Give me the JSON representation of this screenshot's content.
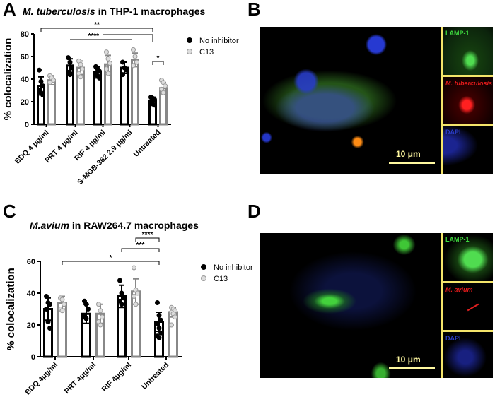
{
  "panels": {
    "A": "A",
    "B": "B",
    "C": "C",
    "D": "D"
  },
  "chart_data": [
    {
      "type": "bar",
      "title_italic": "M. tuberculosis",
      "title_rest": " in THP-1 macrophages",
      "ylabel": "% colocalization",
      "ylim": [
        0,
        80
      ],
      "yticks": [
        "0",
        "20",
        "40",
        "60",
        "80"
      ],
      "categories": [
        "BDQ 4 μg/ml",
        "PRT 4 μg/ml",
        "RIF 4 μg/ml",
        "S-MGB-362 2.9 μg/ml",
        "Untreated"
      ],
      "legend_position": "right",
      "series": [
        {
          "name": "No inhibitor",
          "color": "#000000",
          "values": [
            34,
            52,
            46,
            50,
            21
          ],
          "sd": [
            8,
            6,
            5,
            5,
            3
          ],
          "points": [
            [
              48,
              38,
              34,
              30,
              28,
              26
            ],
            [
              59,
              55,
              50,
              46,
              44
            ],
            [
              51,
              49,
              47,
              45,
              43,
              41
            ],
            [
              55,
              50,
              48,
              44
            ],
            [
              24,
              23,
              22,
              20,
              18,
              17
            ]
          ]
        },
        {
          "name": "C13",
          "color": "#888888",
          "values": [
            39,
            50,
            53,
            57,
            32
          ],
          "sd": [
            4,
            6,
            8,
            6,
            5
          ],
          "points": [
            [
              43,
              41,
              39,
              37
            ],
            [
              56,
              53,
              49,
              45,
              42
            ],
            [
              64,
              58,
              54,
              49,
              45
            ],
            [
              66,
              60,
              55,
              52
            ],
            [
              39,
              37,
              34,
              31,
              28
            ]
          ]
        }
      ],
      "significance": [
        {
          "label": "**",
          "from": [
            0,
            0
          ],
          "to": [
            4,
            0
          ]
        },
        {
          "label": "****",
          "from": [
            1,
            0
          ],
          "to": [
            3,
            0
          ],
          "to2": [
            4,
            0
          ]
        },
        {
          "label": "*",
          "from": [
            4,
            0
          ],
          "to": [
            4,
            1
          ]
        }
      ]
    },
    {
      "type": "bar",
      "title_italic": "M.avium",
      "title_rest": " in RAW264.7 macrophages",
      "ylabel": "% colocalization",
      "ylim": [
        0,
        60
      ],
      "yticks": [
        "0",
        "20",
        "40",
        "60"
      ],
      "categories": [
        "BDQ 4μg/ml",
        "PRT 4μg/ml",
        "RIF 4μg/ml",
        "Untreated"
      ],
      "legend_position": "right",
      "series": [
        {
          "name": "No inhibitor",
          "color": "#000000",
          "values": [
            30,
            27,
            38,
            22
          ],
          "sd": [
            7,
            6,
            7,
            6
          ],
          "points": [
            [
              38,
              34,
              33,
              30,
              22,
              18
            ],
            [
              35,
              33,
              30,
              25,
              24
            ],
            [
              48,
              40,
              37,
              35,
              33
            ],
            [
              34,
              26,
              23,
              21,
              18,
              15,
              13,
              12
            ]
          ]
        },
        {
          "name": "C13",
          "color": "#888888",
          "values": [
            34,
            27,
            41,
            28
          ],
          "sd": [
            4,
            6,
            8,
            3
          ],
          "points": [
            [
              37,
              36,
              33,
              30,
              29
            ],
            [
              33,
              29,
              25,
              22,
              20
            ],
            [
              56,
              42,
              40,
              38,
              33
            ],
            [
              31,
              30,
              29,
              28,
              27,
              25,
              20
            ]
          ]
        }
      ],
      "significance": [
        {
          "label": "*",
          "from": [
            0,
            1
          ],
          "to": [
            3,
            0
          ]
        },
        {
          "label": "***",
          "from": [
            2,
            0
          ],
          "to": [
            3,
            0
          ]
        },
        {
          "label": "****",
          "from": [
            2,
            1
          ],
          "to": [
            3,
            0
          ]
        }
      ]
    }
  ],
  "microscopy_B": {
    "channels": [
      "LAMP-1",
      "M. tuberculosis",
      "DAPI"
    ],
    "scale_bar": "10 μm"
  },
  "microscopy_D": {
    "channels": [
      "LAMP-1",
      "M. avium",
      "DAPI"
    ],
    "scale_bar": "10 μm"
  }
}
